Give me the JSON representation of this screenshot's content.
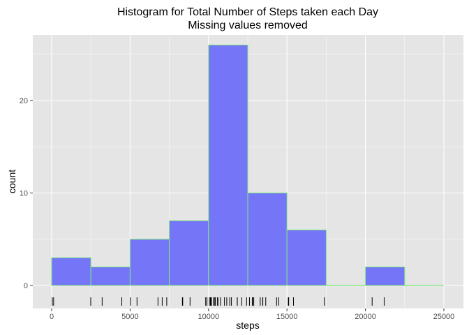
{
  "chart_data": {
    "type": "bar",
    "title_line1": "Histogram for Total Number of Steps taken each Day",
    "title_line2": "Missing values removed",
    "xlabel": "steps",
    "ylabel": "count",
    "xlim": [
      0,
      25000
    ],
    "ylim": [
      0,
      26
    ],
    "grid": true,
    "x_ticks": [
      0,
      5000,
      10000,
      15000,
      20000,
      25000
    ],
    "y_ticks": [
      0,
      10,
      20
    ],
    "bins": [
      {
        "start": 0,
        "end": 2500,
        "count": 3
      },
      {
        "start": 2500,
        "end": 5000,
        "count": 2
      },
      {
        "start": 5000,
        "end": 7500,
        "count": 5
      },
      {
        "start": 7500,
        "end": 10000,
        "count": 7
      },
      {
        "start": 10000,
        "end": 12500,
        "count": 26
      },
      {
        "start": 12500,
        "end": 15000,
        "count": 10
      },
      {
        "start": 15000,
        "end": 17500,
        "count": 6
      },
      {
        "start": 17500,
        "end": 20000,
        "count": 0
      },
      {
        "start": 20000,
        "end": 22500,
        "count": 2
      },
      {
        "start": 22500,
        "end": 25000,
        "count": 0
      }
    ],
    "rug_values": [
      41,
      126,
      2492,
      3219,
      4472,
      5018,
      5441,
      6778,
      7047,
      7336,
      8334,
      8355,
      8821,
      9819,
      9900,
      10056,
      10119,
      10139,
      10183,
      10304,
      10395,
      10439,
      10571,
      10600,
      10765,
      11015,
      11162,
      11352,
      11458,
      11829,
      11834,
      12116,
      12426,
      12608,
      12787,
      12811,
      12883,
      13294,
      13452,
      13460,
      13646,
      14339,
      14478,
      15084,
      15098,
      15110,
      15414,
      17382,
      20427,
      21194
    ],
    "colors": {
      "panel_background": "#e5e5e5",
      "grid_major": "#ffffff",
      "bar_fill": "#7575f8",
      "bar_outline": "#7cec7c",
      "rug": "#000000",
      "tick_label": "#4d4d4d"
    }
  }
}
